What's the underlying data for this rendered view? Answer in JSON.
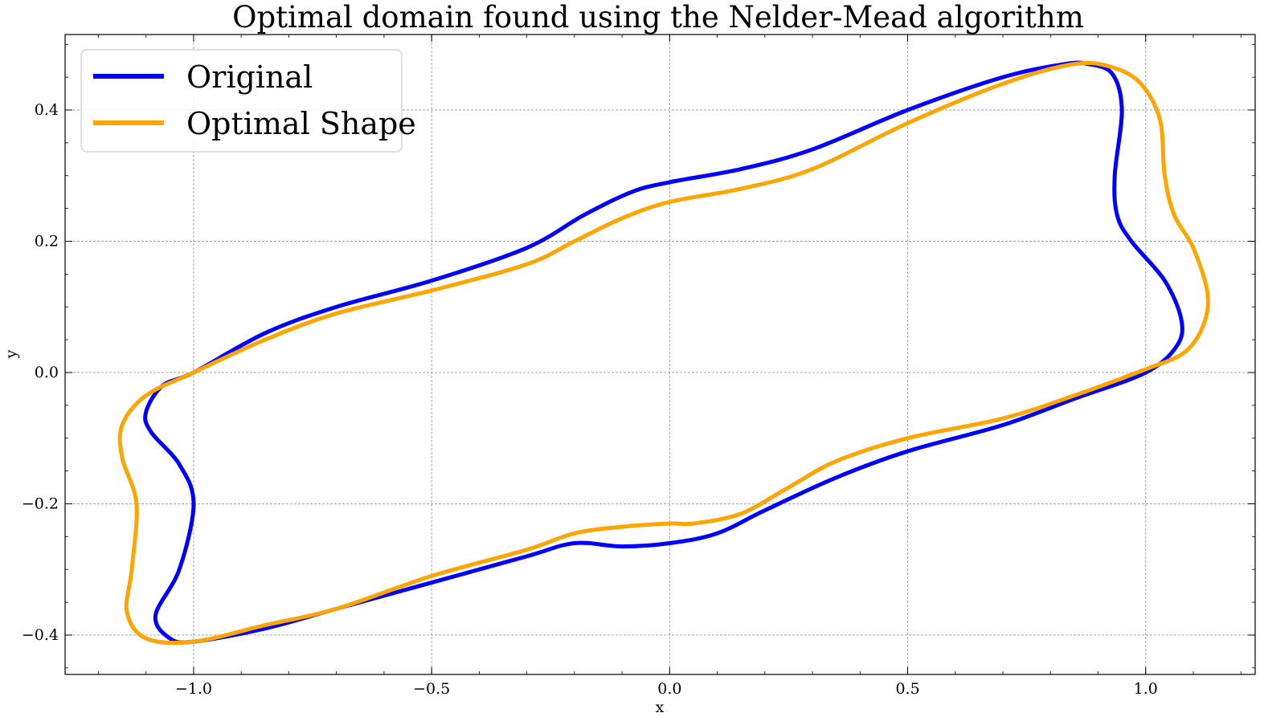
{
  "chart_data": {
    "type": "line",
    "title": "Optimal domain found using the Nelder-Mead algorithm",
    "xlabel": "x",
    "ylabel": "y",
    "xlim": [
      -1.27,
      1.23
    ],
    "ylim": [
      -0.46,
      0.515
    ],
    "grid": true,
    "legend_position": "top-left",
    "x_ticks": [
      -1.0,
      -0.5,
      0.0,
      0.5,
      1.0
    ],
    "x_tick_labels": [
      "−1.0",
      "−0.5",
      "0.0",
      "0.5",
      "1.0"
    ],
    "y_ticks": [
      -0.4,
      -0.2,
      0.0,
      0.2,
      0.4
    ],
    "y_tick_labels": [
      "−0.4",
      "−0.2",
      "0.0",
      "0.2",
      "0.4"
    ],
    "series": [
      {
        "name": "Original",
        "color": "#0000ff",
        "closed": true,
        "x": [
          -1.0,
          -0.85,
          -0.7,
          -0.5,
          -0.3,
          -0.18,
          -0.08,
          0.0,
          0.15,
          0.3,
          0.5,
          0.7,
          0.83,
          0.88,
          0.93,
          0.95,
          0.935,
          0.94,
          0.97,
          1.04,
          1.075,
          1.065,
          1.0,
          0.85,
          0.7,
          0.5,
          0.35,
          0.2,
          0.1,
          0.0,
          -0.1,
          -0.2,
          -0.3,
          -0.5,
          -0.7,
          -0.85,
          -1.0,
          -1.05,
          -1.08,
          -1.03,
          -1.0,
          -1.03,
          -1.09,
          -1.1,
          -1.065,
          -1.0
        ],
        "y": [
          0.0,
          0.06,
          0.1,
          0.14,
          0.19,
          0.24,
          0.275,
          0.29,
          0.31,
          0.34,
          0.4,
          0.45,
          0.47,
          0.47,
          0.455,
          0.4,
          0.3,
          0.24,
          0.2,
          0.14,
          0.08,
          0.04,
          0.0,
          -0.04,
          -0.08,
          -0.12,
          -0.16,
          -0.21,
          -0.245,
          -0.26,
          -0.265,
          -0.26,
          -0.28,
          -0.32,
          -0.36,
          -0.39,
          -0.41,
          -0.405,
          -0.37,
          -0.3,
          -0.2,
          -0.14,
          -0.09,
          -0.06,
          -0.02,
          0.0
        ]
      },
      {
        "name": "Optimal Shape",
        "color": "#ffa500",
        "closed": true,
        "x": [
          -1.0,
          -0.85,
          -0.7,
          -0.5,
          -0.3,
          -0.2,
          -0.1,
          0.0,
          0.15,
          0.3,
          0.5,
          0.7,
          0.85,
          0.93,
          0.99,
          1.03,
          1.04,
          1.06,
          1.1,
          1.13,
          1.12,
          1.08,
          1.0,
          0.85,
          0.7,
          0.5,
          0.35,
          0.25,
          0.15,
          0.05,
          0.0,
          -0.1,
          -0.2,
          -0.3,
          -0.5,
          -0.7,
          -0.85,
          -1.0,
          -1.1,
          -1.14,
          -1.13,
          -1.12,
          -1.15,
          -1.15,
          -1.1,
          -1.0
        ],
        "y": [
          0.0,
          0.05,
          0.09,
          0.125,
          0.165,
          0.2,
          0.235,
          0.26,
          0.28,
          0.31,
          0.38,
          0.44,
          0.47,
          0.465,
          0.44,
          0.385,
          0.3,
          0.24,
          0.19,
          0.12,
          0.07,
          0.03,
          0.005,
          -0.035,
          -0.07,
          -0.1,
          -0.135,
          -0.175,
          -0.215,
          -0.23,
          -0.23,
          -0.235,
          -0.245,
          -0.27,
          -0.31,
          -0.36,
          -0.385,
          -0.41,
          -0.405,
          -0.365,
          -0.3,
          -0.2,
          -0.13,
          -0.08,
          -0.035,
          0.0
        ]
      }
    ]
  }
}
